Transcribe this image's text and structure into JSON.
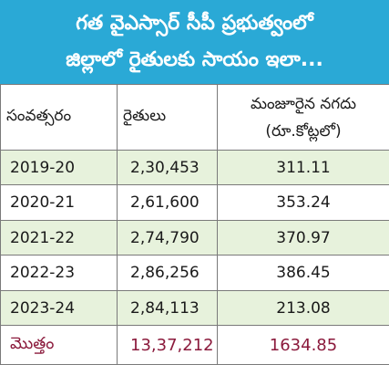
{
  "header": {
    "line1": "గత వైఎస్సార్ సీపీ ప్రభుత్వంలో",
    "line2": "జిల్లాలో రైతులకు సాయం ఇలా..."
  },
  "table": {
    "columns": {
      "year": "సంవత్సరం",
      "farmers": "రైతులు",
      "amount_line1": "మంజూరైన నగదు",
      "amount_line2": "(రూ.కోట్లలో)"
    },
    "rows": [
      {
        "year": "2019-20",
        "farmers": "2,30,453",
        "amount": "311.11"
      },
      {
        "year": "2020-21",
        "farmers": "2,61,600",
        "amount": "353.24"
      },
      {
        "year": "2021-22",
        "farmers": "2,74,790",
        "amount": "370.97"
      },
      {
        "year": "2022-23",
        "farmers": "2,86,256",
        "amount": "386.45"
      },
      {
        "year": "2023-24",
        "farmers": "2,84,113",
        "amount": "213.08"
      }
    ],
    "total": {
      "label": "మొత్తం",
      "farmers": "13,37,212",
      "amount": "1634.85"
    }
  },
  "colors": {
    "banner": "#2aa9d6",
    "row_shade": "#e7f2dc",
    "total_text": "#8b1a3c"
  }
}
